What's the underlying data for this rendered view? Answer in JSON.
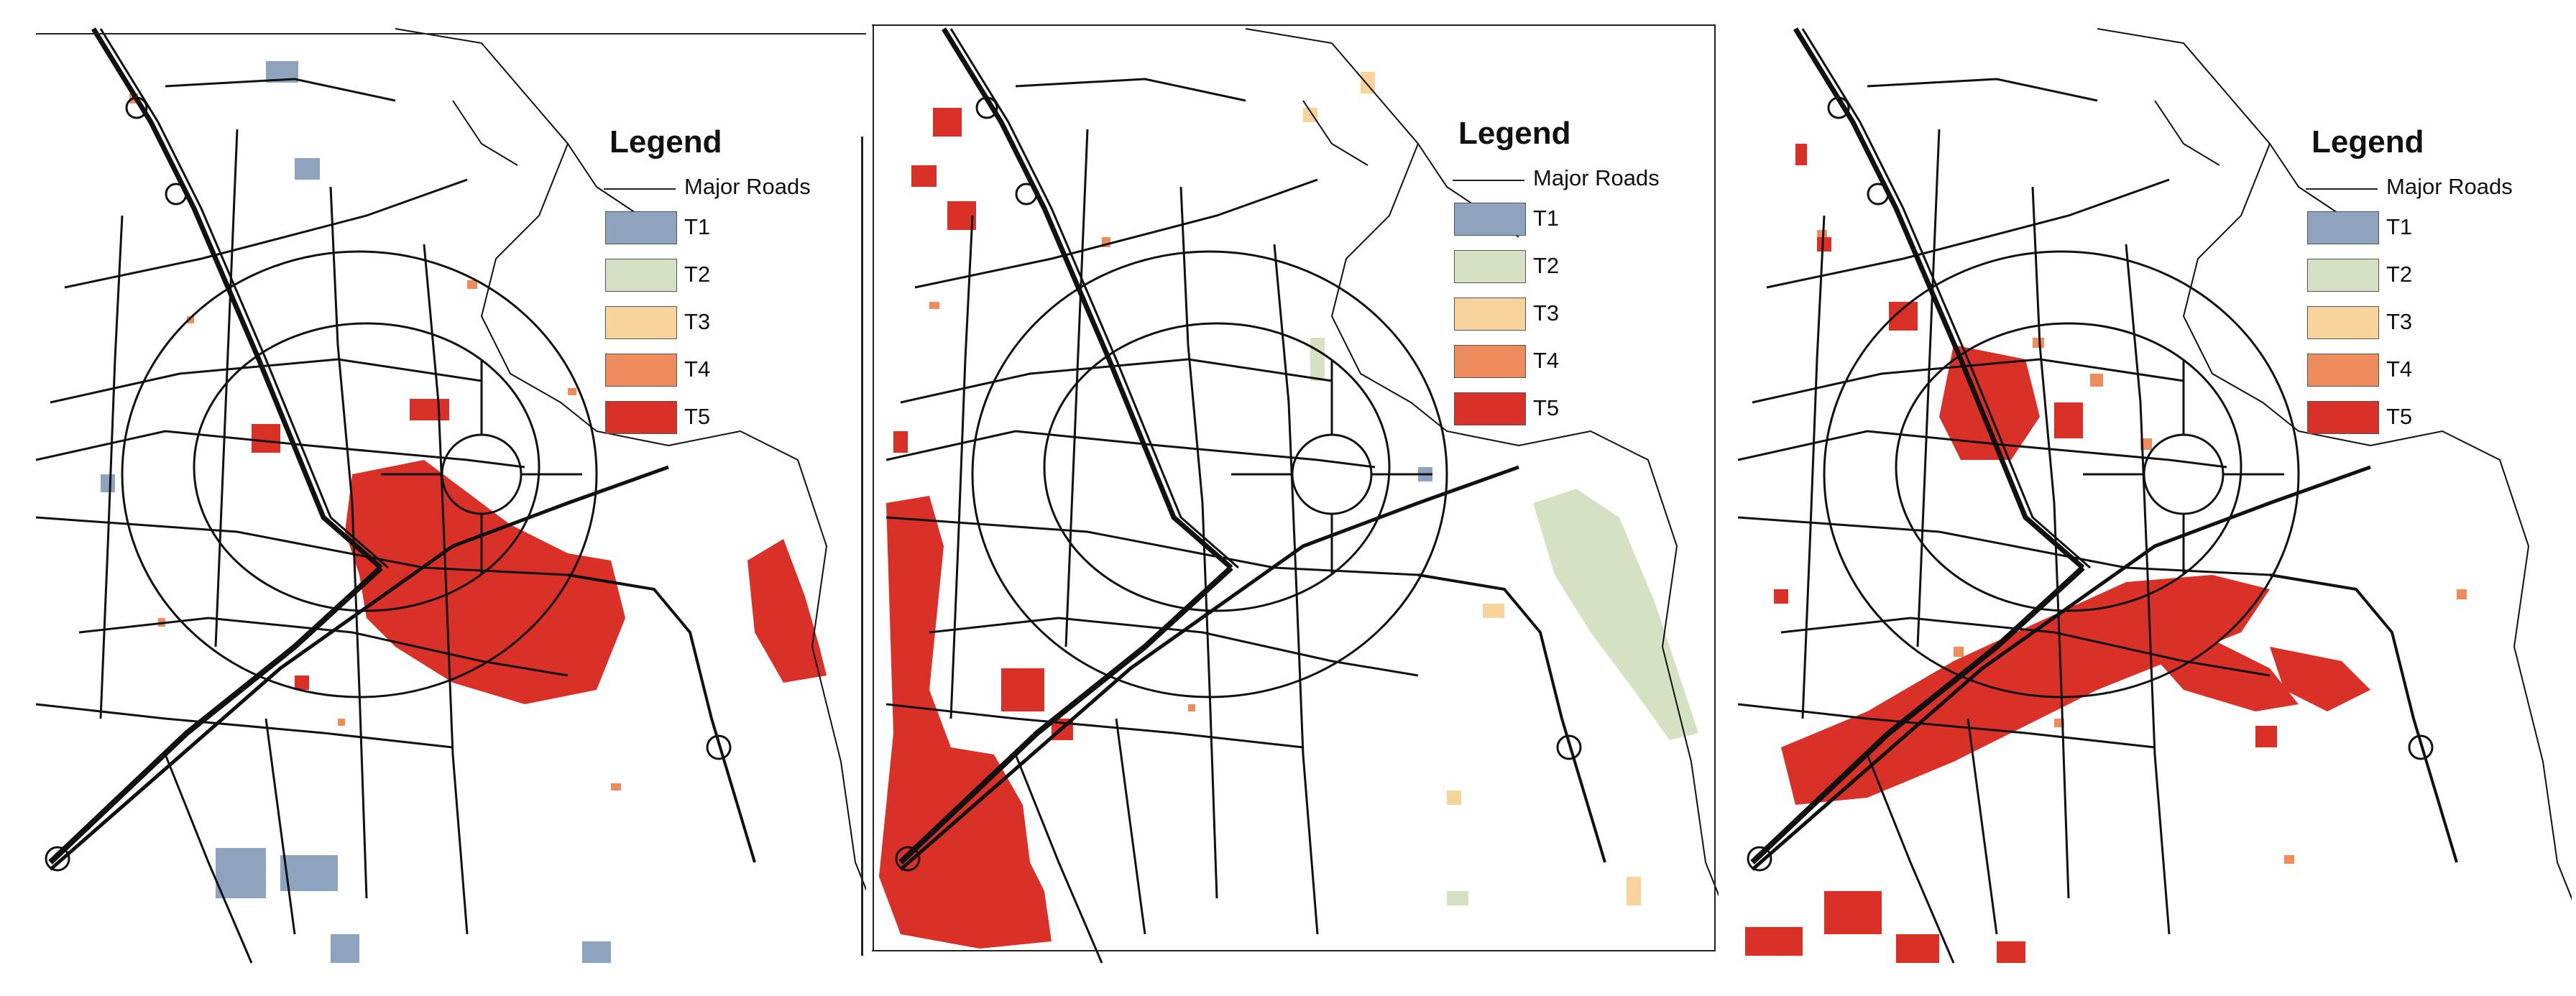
{
  "legend": {
    "title": "Legend",
    "roads_label": "Major Roads",
    "classes": [
      {
        "label": "T1",
        "color": "#8ea3bd"
      },
      {
        "label": "T2",
        "color": "#d6e0c2"
      },
      {
        "label": "T3",
        "color": "#f8d49c"
      },
      {
        "label": "T4",
        "color": "#ee8c5d"
      },
      {
        "label": "T5",
        "color": "#d93028"
      }
    ]
  },
  "maps": [
    {
      "id": "map-1"
    },
    {
      "id": "map-2"
    },
    {
      "id": "map-3"
    }
  ]
}
